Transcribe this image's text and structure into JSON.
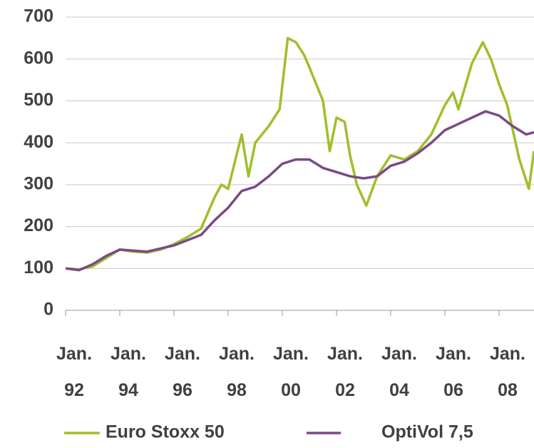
{
  "chart_data": {
    "type": "line",
    "xlim": [
      1992,
      2009.29
    ],
    "xticks": [
      {
        "value": 1992,
        "label": "Jan. 92"
      },
      {
        "value": 1994,
        "label": "Jan. 94"
      },
      {
        "value": 1996,
        "label": "Jan. 96"
      },
      {
        "value": 1998,
        "label": "Jan. 98"
      },
      {
        "value": 2000,
        "label": "Jan. 00"
      },
      {
        "value": 2002,
        "label": "Jan. 02"
      },
      {
        "value": 2004,
        "label": "Jan. 04"
      },
      {
        "value": 2006,
        "label": "Jan. 06"
      },
      {
        "value": 2008,
        "label": "Jan. 08"
      }
    ],
    "ylim": [
      0,
      700
    ],
    "yticks": [
      0,
      100,
      200,
      300,
      400,
      500,
      600,
      700
    ],
    "grid": true,
    "legend": "bottom",
    "series": [
      {
        "name": "Euro Stoxx 50",
        "color": "#9fbf2a",
        "x": [
          1992,
          1992.5,
          1993,
          1993.5,
          1994,
          1994.5,
          1995,
          1995.5,
          1996,
          1996.5,
          1997,
          1997.5,
          1997.75,
          1998,
          1998.5,
          1998.75,
          1999,
          1999.5,
          1999.9,
          2000.2,
          2000.5,
          2000.8,
          2001,
          2001.5,
          2001.75,
          2002,
          2002.3,
          2002.5,
          2002.75,
          2003.1,
          2003.5,
          2004,
          2004.5,
          2005,
          2005.5,
          2006,
          2006.3,
          2006.5,
          2007,
          2007.4,
          2007.7,
          2008,
          2008.3,
          2008.75,
          2009.1,
          2009.29
        ],
        "values": [
          100,
          98,
          105,
          125,
          145,
          140,
          138,
          145,
          158,
          175,
          195,
          270,
          300,
          290,
          420,
          320,
          400,
          440,
          480,
          650,
          640,
          610,
          580,
          500,
          380,
          460,
          450,
          370,
          300,
          250,
          320,
          370,
          360,
          380,
          420,
          490,
          520,
          480,
          590,
          640,
          600,
          540,
          490,
          360,
          290,
          380
        ]
      },
      {
        "name": "OptiVol 7,5",
        "color": "#7b4a86",
        "x": [
          1992,
          1992.5,
          1993,
          1993.5,
          1994,
          1995,
          1996,
          1997,
          1997.5,
          1998,
          1998.5,
          1999,
          1999.5,
          2000,
          2000.5,
          2001,
          2001.5,
          2002,
          2002.5,
          2003,
          2003.5,
          2004,
          2004.5,
          2005,
          2005.5,
          2006,
          2006.5,
          2007,
          2007.5,
          2008,
          2008.5,
          2009,
          2009.29
        ],
        "values": [
          100,
          96,
          110,
          130,
          145,
          140,
          155,
          180,
          215,
          245,
          285,
          295,
          320,
          350,
          360,
          360,
          340,
          330,
          320,
          315,
          320,
          345,
          355,
          375,
          400,
          430,
          445,
          460,
          475,
          465,
          440,
          420,
          425
        ]
      }
    ]
  }
}
